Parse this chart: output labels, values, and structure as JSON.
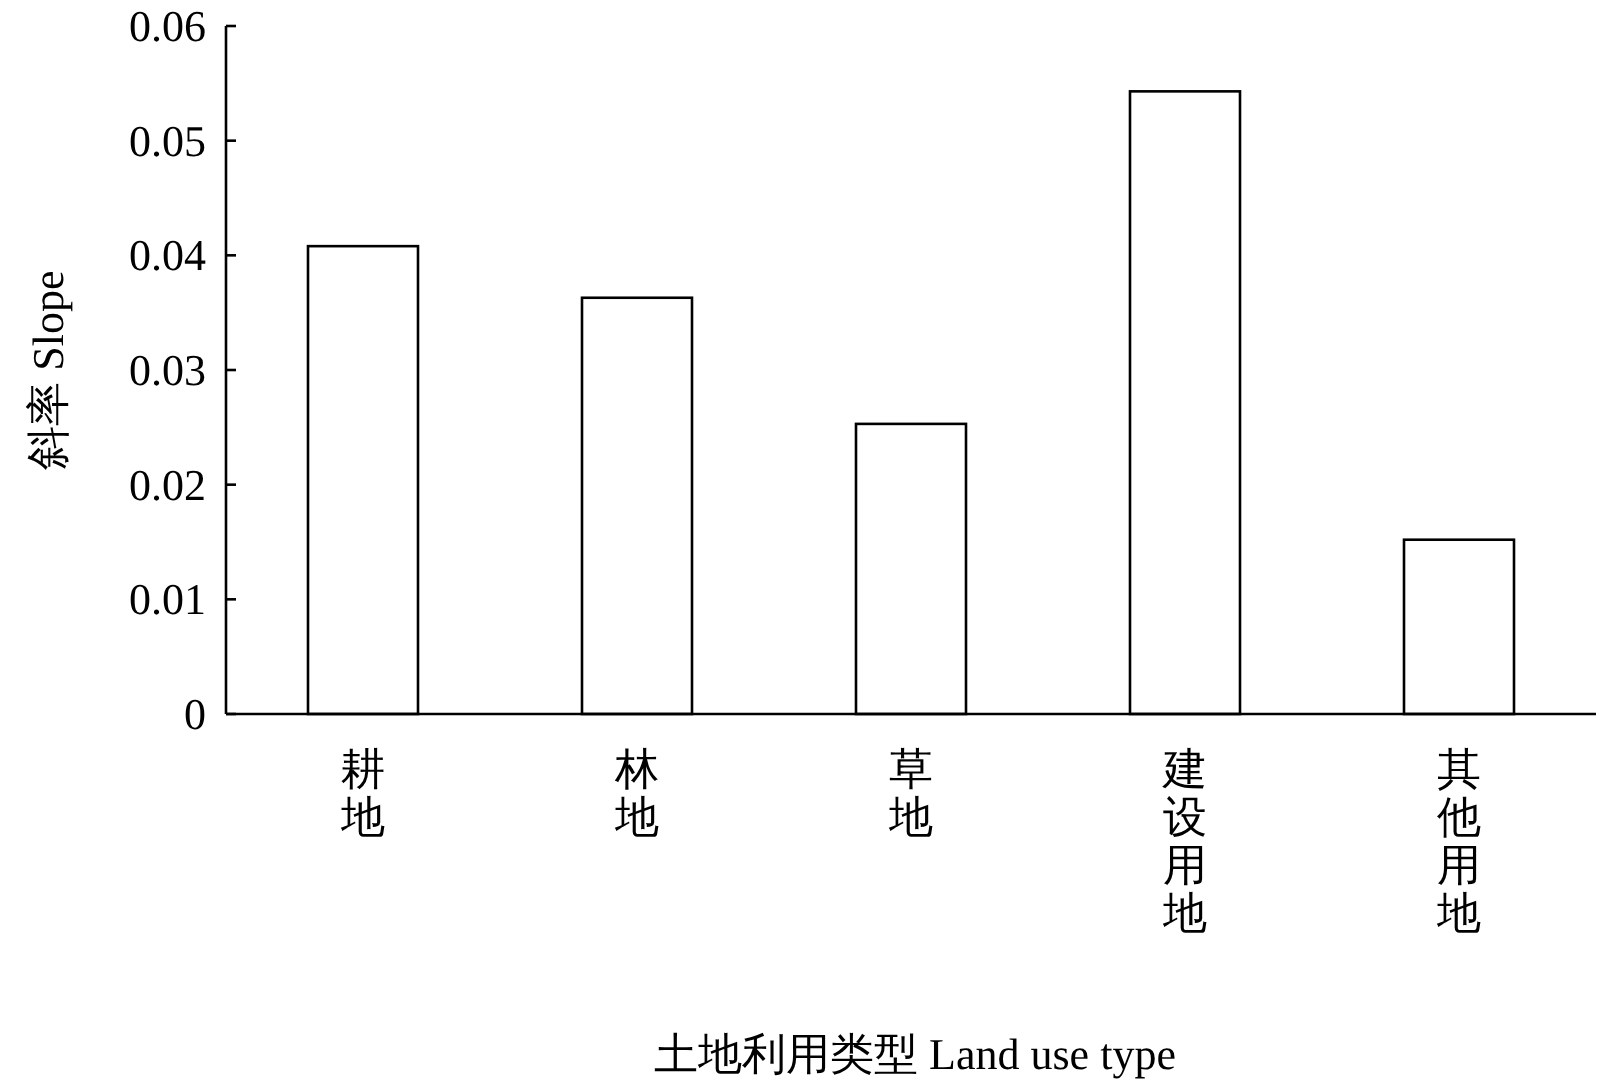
{
  "chart_data": {
    "type": "bar",
    "xlabel": "土地利用类型 Land use type",
    "ylabel": "斜率 Slope",
    "categories": [
      "耕地",
      "林地",
      "草地",
      "建设用地",
      "其他用地"
    ],
    "values": [
      0.0408,
      0.0363,
      0.0253,
      0.0543,
      0.0152
    ],
    "color": "#ffffff",
    "ylim": [
      0,
      0.06
    ],
    "yticks": [
      0,
      0.01,
      0.02,
      0.03,
      0.04,
      0.05,
      0.06
    ],
    "grid": false
  }
}
